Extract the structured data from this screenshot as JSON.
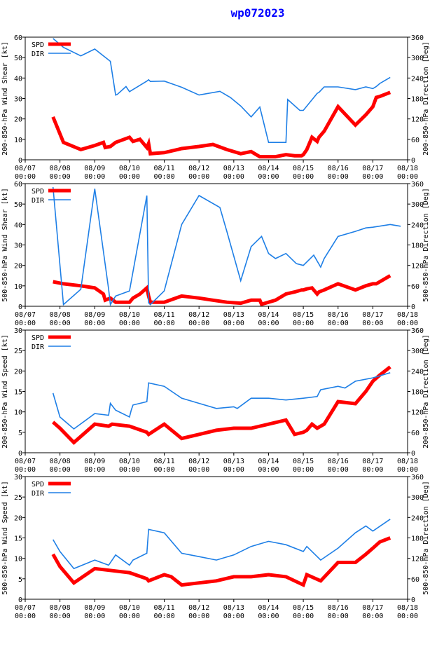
{
  "title": "wp072023",
  "colors": {
    "spd": "#ff0000",
    "dir": "#1e7fe6",
    "axes": "#000000",
    "title": "#0000ff"
  },
  "x_tick_labels": [
    [
      "08/07",
      "00:00"
    ],
    [
      "08/08",
      "00:00"
    ],
    [
      "08/09",
      "00:00"
    ],
    [
      "08/10",
      "00:00"
    ],
    [
      "08/11",
      "00:00"
    ],
    [
      "08/12",
      "00:00"
    ],
    [
      "08/13",
      "00:00"
    ],
    [
      "08/14",
      "00:00"
    ],
    [
      "08/15",
      "00:00"
    ],
    [
      "08/16",
      "00:00"
    ],
    [
      "08/17",
      "00:00"
    ],
    [
      "08/18",
      "00:00"
    ]
  ],
  "chart_data": [
    {
      "type": "line",
      "ylabel_left": "200-850-hPa Wind Shear [kt]",
      "ylabel_right": "200-850-hPa Direction [Deg]",
      "xlim": [
        0,
        11
      ],
      "ylim_left": [
        0,
        60
      ],
      "ylim_right": [
        0,
        360
      ],
      "yticks_left": [
        0,
        10,
        20,
        30,
        40,
        50,
        60
      ],
      "yticks_right": [
        0,
        60,
        120,
        180,
        240,
        300,
        360
      ],
      "legend": [
        "SPD",
        "DIR"
      ],
      "series": [
        {
          "name": "SPD",
          "axis": "left",
          "x": [
            0.8,
            1.1,
            1.6,
            2.0,
            2.25,
            2.3,
            2.45,
            2.6,
            3.0,
            3.1,
            3.3,
            3.5,
            3.55,
            3.6,
            4.0,
            4.5,
            5.0,
            5.4,
            5.8,
            6.2,
            6.5,
            6.75,
            6.8,
            7.0,
            7.2,
            7.5,
            7.75,
            7.95,
            8.0,
            8.1,
            8.25,
            8.4,
            8.45,
            8.6,
            9.0,
            9.5,
            9.8,
            10.0,
            10.1,
            10.2,
            10.5
          ],
          "y": [
            21,
            8.5,
            5,
            7,
            8.5,
            6,
            6.5,
            8.5,
            11,
            9,
            10,
            6,
            8,
            3,
            3.5,
            5.5,
            6.5,
            7.5,
            5,
            3,
            4,
            1.5,
            1.5,
            1.5,
            1.5,
            2.5,
            2,
            2,
            2.5,
            5,
            11,
            9,
            11,
            14,
            26,
            17,
            22,
            26,
            30.5,
            31,
            33
          ]
        },
        {
          "name": "DIR",
          "axis": "right",
          "x": [
            0.8,
            1.1,
            1.6,
            2.0,
            2.45,
            2.6,
            2.65,
            2.9,
            3.0,
            3.5,
            3.55,
            3.6,
            4.0,
            4.5,
            5.0,
            5.6,
            5.9,
            6.2,
            6.5,
            6.75,
            7.0,
            7.5,
            7.55,
            7.9,
            8.0,
            8.4,
            8.45,
            8.6,
            9.0,
            9.5,
            9.8,
            10.0,
            10.1,
            10.2,
            10.3,
            10.5
          ],
          "y": [
            356,
            330,
            305,
            325,
            289,
            190,
            192,
            215,
            200,
            231,
            235,
            230,
            231,
            213,
            190,
            201,
            183,
            158,
            126,
            155,
            51,
            51,
            177,
            145,
            145,
            195,
            198,
            214,
            214,
            206,
            214,
            209,
            215,
            224,
            230,
            242
          ]
        }
      ]
    },
    {
      "type": "line",
      "ylabel_left": "500-850-hPa Wind Shear [kt]",
      "ylabel_right": "500-850-hPa Direction [Deg]",
      "xlim": [
        0,
        11
      ],
      "ylim_left": [
        0,
        60
      ],
      "ylim_right": [
        0,
        360
      ],
      "yticks_left": [
        0,
        10,
        20,
        30,
        40,
        50,
        60
      ],
      "yticks_right": [
        0,
        60,
        120,
        180,
        240,
        300,
        360
      ],
      "legend": [
        "SPD",
        "DIR"
      ],
      "series": [
        {
          "name": "SPD",
          "axis": "left",
          "x": [
            0.8,
            1.1,
            1.6,
            2.0,
            2.25,
            2.3,
            2.45,
            2.6,
            3.0,
            3.1,
            3.3,
            3.5,
            3.55,
            3.6,
            4.0,
            4.5,
            5.0,
            5.4,
            5.8,
            6.2,
            6.5,
            6.75,
            6.8,
            7.0,
            7.2,
            7.5,
            7.75,
            7.95,
            8.0,
            8.1,
            8.25,
            8.4,
            8.45,
            8.6,
            9.0,
            9.5,
            9.8,
            10.0,
            10.1,
            10.2,
            10.5
          ],
          "y": [
            12,
            11,
            10,
            9,
            6,
            3,
            4,
            2,
            2,
            4,
            6,
            9,
            5,
            2,
            2,
            5,
            4,
            3,
            2,
            1.5,
            3,
            3,
            1,
            2,
            3,
            6,
            7,
            8,
            8,
            8.5,
            9,
            6,
            7,
            8,
            11,
            8,
            10,
            11,
            11,
            12,
            15
          ]
        },
        {
          "name": "DIR",
          "axis": "right",
          "x": [
            0.8,
            1.1,
            1.6,
            2.0,
            2.4,
            2.45,
            2.6,
            3.0,
            3.5,
            3.55,
            3.6,
            4.0,
            4.5,
            5.0,
            5.6,
            5.8,
            6.2,
            6.5,
            6.8,
            7.0,
            7.2,
            7.5,
            7.8,
            8.0,
            8.3,
            8.5,
            8.6,
            9.0,
            9.5,
            9.8,
            10.0,
            10.5,
            10.8
          ],
          "y": [
            350,
            5,
            50,
            345,
            50,
            5,
            30,
            45,
            325,
            10,
            5,
            45,
            240,
            325,
            290,
            220,
            75,
            175,
            205,
            155,
            140,
            155,
            125,
            120,
            150,
            115,
            140,
            205,
            220,
            230,
            232,
            240,
            235
          ]
        }
      ]
    },
    {
      "type": "line",
      "ylabel_left": "200-850-hPa Wind Speed [kt]",
      "ylabel_right": "200-850-hPa Direction [Deg]",
      "xlim": [
        0,
        11
      ],
      "ylim_left": [
        0,
        30
      ],
      "ylim_right": [
        0,
        360
      ],
      "yticks_left": [
        0,
        5,
        10,
        15,
        20,
        25,
        30
      ],
      "yticks_right": [
        0,
        60,
        120,
        180,
        240,
        300,
        360
      ],
      "legend": [
        "SPD",
        "DIR"
      ],
      "series": [
        {
          "name": "SPD",
          "axis": "left",
          "x": [
            0.8,
            1.0,
            1.4,
            2.0,
            2.4,
            2.5,
            3.0,
            3.5,
            3.55,
            4.0,
            4.5,
            5.0,
            5.5,
            6.0,
            6.5,
            7.0,
            7.5,
            7.75,
            8.0,
            8.1,
            8.25,
            8.4,
            8.5,
            8.6,
            9.0,
            9.5,
            9.8,
            10.0,
            10.2,
            10.5
          ],
          "y": [
            7.5,
            6,
            2.5,
            7,
            6.5,
            7,
            6.5,
            5,
            4.5,
            7,
            3.5,
            4.5,
            5.5,
            6,
            6,
            7,
            8,
            4.5,
            5,
            5.5,
            7,
            6,
            6.5,
            7,
            12.5,
            12,
            15,
            17.5,
            19,
            21
          ]
        },
        {
          "name": "DIR",
          "axis": "right",
          "x": [
            0.8,
            1.0,
            1.4,
            2.0,
            2.4,
            2.45,
            2.6,
            3.0,
            3.05,
            3.1,
            3.5,
            3.55,
            4.0,
            4.5,
            5.0,
            5.5,
            6.0,
            6.1,
            6.5,
            7.0,
            7.5,
            8.0,
            8.4,
            8.45,
            8.5,
            9.0,
            9.2,
            9.5,
            10.0,
            10.5
          ],
          "y": [
            175,
            105,
            70,
            115,
            110,
            145,
            125,
            105,
            125,
            140,
            150,
            205,
            195,
            160,
            145,
            130,
            135,
            130,
            160,
            160,
            155,
            160,
            165,
            175,
            185,
            195,
            190,
            210,
            220,
            235
          ]
        }
      ]
    },
    {
      "type": "line",
      "ylabel_left": "500-850-hPa Wind Speed [kt]",
      "ylabel_right": "500-850-hPa Direction [Deg]",
      "xlim": [
        0,
        11
      ],
      "ylim_left": [
        0,
        30
      ],
      "ylim_right": [
        0,
        360
      ],
      "yticks_left": [
        0,
        5,
        10,
        15,
        20,
        25,
        30
      ],
      "yticks_right": [
        0,
        60,
        120,
        180,
        240,
        300,
        360
      ],
      "legend": [
        "SPD",
        "DIR"
      ],
      "series": [
        {
          "name": "SPD",
          "axis": "left",
          "x": [
            0.8,
            1.0,
            1.4,
            2.0,
            2.5,
            3.0,
            3.5,
            3.55,
            4.0,
            4.2,
            4.5,
            5.0,
            5.5,
            6.0,
            6.5,
            7.0,
            7.5,
            8.0,
            8.1,
            8.5,
            9.0,
            9.5,
            9.8,
            10.0,
            10.2,
            10.5
          ],
          "y": [
            11,
            8,
            4,
            7.5,
            7,
            6.5,
            5,
            4.5,
            6,
            5.5,
            3.5,
            4,
            4.5,
            5.5,
            5.5,
            6,
            5.5,
            3.5,
            6,
            4.5,
            9,
            9,
            11,
            12.5,
            14,
            15
          ]
        },
        {
          "name": "DIR",
          "axis": "right",
          "x": [
            0.8,
            1.0,
            1.4,
            2.0,
            2.4,
            2.6,
            3.0,
            3.1,
            3.5,
            3.55,
            4.0,
            4.5,
            5.0,
            5.5,
            6.0,
            6.5,
            7.0,
            7.5,
            8.0,
            8.1,
            8.5,
            9.0,
            9.5,
            9.8,
            10.0,
            10.5
          ],
          "y": [
            175,
            140,
            90,
            115,
            100,
            130,
            100,
            115,
            135,
            205,
            195,
            135,
            125,
            115,
            130,
            155,
            170,
            160,
            140,
            155,
            115,
            150,
            195,
            215,
            200,
            235
          ]
        }
      ]
    }
  ]
}
